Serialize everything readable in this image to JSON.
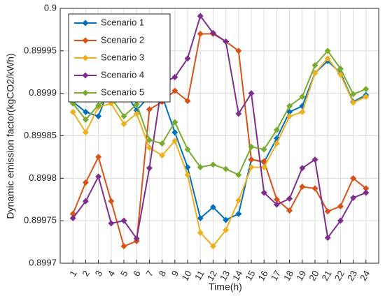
{
  "chart_data": {
    "type": "line",
    "xlabel": "Time(h)",
    "ylabel": "Dynamic emission factor(kgCO2/kWh)",
    "x": [
      1,
      2,
      3,
      4,
      5,
      6,
      7,
      8,
      9,
      10,
      11,
      12,
      13,
      14,
      15,
      16,
      17,
      18,
      19,
      20,
      21,
      22,
      23,
      24
    ],
    "xlim": [
      0,
      25
    ],
    "xticks": [
      1,
      2,
      3,
      4,
      5,
      6,
      7,
      8,
      9,
      10,
      11,
      12,
      13,
      14,
      15,
      16,
      17,
      18,
      19,
      20,
      21,
      22,
      23,
      24
    ],
    "ylim": [
      0.8997,
      0.9
    ],
    "yticks": [
      0.8997,
      0.89975,
      0.8998,
      0.89985,
      0.8999,
      0.89995,
      0.9
    ],
    "grid": true,
    "legend": "northwest",
    "series": [
      {
        "name": "Scenario 1",
        "color": "#0072BD",
        "values": [
          0.89989,
          0.899878,
          0.899873,
          0.899912,
          0.899903,
          0.89988,
          0.899897,
          0.899897,
          0.899854,
          0.899813,
          0.899753,
          0.899766,
          0.899751,
          0.899758,
          0.899822,
          0.899819,
          0.899847,
          0.899878,
          0.899885,
          0.899924,
          0.899938,
          0.899924,
          0.89989,
          0.899898
        ]
      },
      {
        "name": "Scenario 2",
        "color": "#D95319",
        "values": [
          0.899758,
          0.899795,
          0.899825,
          0.899773,
          0.89972,
          0.899726,
          0.899881,
          0.89989,
          0.899903,
          0.899891,
          0.89997,
          0.89997,
          0.899961,
          0.89995,
          0.899822,
          0.89982,
          0.899775,
          0.899762,
          0.89979,
          0.899788,
          0.899761,
          0.899767,
          0.8998,
          0.899788
        ]
      },
      {
        "name": "Scenario 3",
        "color": "#EDB120",
        "values": [
          0.899878,
          0.899854,
          0.899884,
          0.899888,
          0.899864,
          0.899876,
          0.899836,
          0.899827,
          0.899844,
          0.899804,
          0.899736,
          0.89972,
          0.899739,
          0.899774,
          0.899813,
          0.899813,
          0.899841,
          0.899873,
          0.899878,
          0.899924,
          0.899941,
          0.899922,
          0.899889,
          0.899896
        ]
      },
      {
        "name": "Scenario 4",
        "color": "#7E2F8E",
        "values": [
          0.899753,
          0.899773,
          0.899802,
          0.899747,
          0.89975,
          0.899729,
          0.899812,
          0.899912,
          0.899919,
          0.899941,
          0.899991,
          0.899971,
          0.899961,
          0.899876,
          0.8999,
          0.899783,
          0.899769,
          0.899776,
          0.899812,
          0.899822,
          0.89973,
          0.89975,
          0.899777,
          0.899783
        ]
      },
      {
        "name": "Scenario 5",
        "color": "#77AC30",
        "values": [
          0.899888,
          0.899869,
          0.899886,
          0.899895,
          0.899873,
          0.899887,
          0.899845,
          0.899841,
          0.899866,
          0.899834,
          0.899813,
          0.899816,
          0.899811,
          0.899804,
          0.899837,
          0.899834,
          0.899857,
          0.899885,
          0.899896,
          0.899933,
          0.89995,
          0.899929,
          0.899899,
          0.899905
        ]
      }
    ]
  }
}
